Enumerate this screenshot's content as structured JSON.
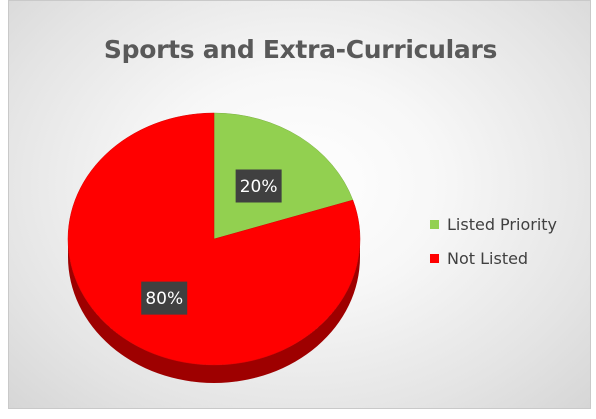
{
  "chart_data": {
    "type": "pie",
    "title": "Sports and Extra-Curriculars",
    "categories": [
      "Listed Priority",
      "Not Listed"
    ],
    "values": [
      20,
      80
    ],
    "labels": [
      "20%",
      "80%"
    ],
    "colors": [
      "#92d050",
      "#ff0000"
    ],
    "legend_position": "right"
  }
}
